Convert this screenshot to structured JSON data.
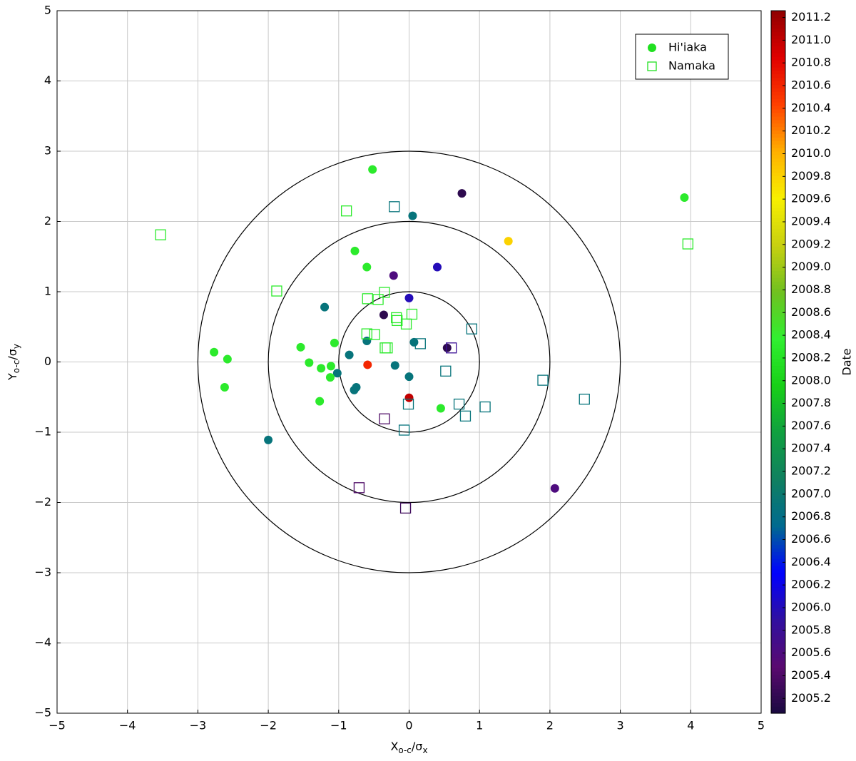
{
  "chart_data": {
    "type": "scatter",
    "xlabel": [
      "X",
      "o-c",
      "/σ",
      "x"
    ],
    "ylabel": [
      "Y",
      "o-c",
      "/σ",
      "y"
    ],
    "xlim": [
      -5,
      5
    ],
    "ylim": [
      -5,
      5
    ],
    "xticks": [
      {
        "value": -5,
        "label": "−5"
      },
      {
        "value": -4,
        "label": "−4"
      },
      {
        "value": -3,
        "label": "−3"
      },
      {
        "value": -2,
        "label": "−2"
      },
      {
        "value": -1,
        "label": "−1"
      },
      0,
      1,
      2,
      3,
      4,
      5
    ],
    "yticks": [
      {
        "value": -5,
        "label": "−5"
      },
      {
        "value": -4,
        "label": "−4"
      },
      {
        "value": -3,
        "label": "−3"
      },
      {
        "value": -2,
        "label": "−2"
      },
      {
        "value": -1,
        "label": "−1"
      },
      0,
      1,
      2,
      3,
      4,
      5
    ],
    "grid": true,
    "circles": [
      1,
      2,
      3
    ],
    "legend": "upper right",
    "colorbar": {
      "label": "Date",
      "lim": [
        2005.07,
        2011.26
      ],
      "ticks": [
        2005.2,
        2005.4,
        2005.6,
        2005.8,
        {
          "value": 2006,
          "label": "2006.0"
        },
        2006.2,
        2006.4,
        2006.6,
        2006.8,
        {
          "value": 2007,
          "label": "2007.0"
        },
        2007.2,
        2007.4,
        2007.6,
        2007.8,
        {
          "value": 2008,
          "label": "2008.0"
        },
        2008.2,
        2008.4,
        2008.6,
        2008.8,
        {
          "value": 2009,
          "label": "2009.0"
        },
        2009.2,
        2009.4,
        2009.6,
        2009.8,
        {
          "value": 2010,
          "label": "2010.0"
        },
        2010.2,
        2010.4,
        2010.6,
        2010.8,
        {
          "value": 2011,
          "label": "2011.0"
        },
        2011.2
      ],
      "colors": [
        "#1a0a40",
        "#5a0a70",
        "#3010a0",
        "#0000ff",
        "#006a90",
        "#108060",
        "#10a040",
        "#18d018",
        "#30f030",
        "#70c020",
        "#c8d010",
        "#f8f000",
        "#ffb000",
        "#ff4000",
        "#e00000",
        "#900000"
      ]
    },
    "series": [
      {
        "name": "Hi'iaka",
        "marker": "circle",
        "color": "#20e020",
        "x": [
          -0.52,
          0.75,
          0.05,
          3.91,
          1.41,
          -0.77,
          -0.6,
          0.4,
          -0.22,
          0.0,
          -1.2,
          -0.36,
          -2.77,
          -2.58,
          -1.54,
          -1.06,
          -0.6,
          0.07,
          0.54,
          -0.85,
          -1.42,
          -1.25,
          -1.11,
          -1.02,
          -1.12,
          -0.59,
          -0.2,
          0.0,
          -0.75,
          -0.78,
          -2.62,
          -1.27,
          0.0,
          0.45,
          -2.0,
          2.07
        ],
        "y": [
          2.74,
          2.4,
          2.08,
          2.34,
          1.72,
          1.58,
          1.35,
          1.35,
          1.23,
          0.91,
          0.78,
          0.67,
          0.14,
          0.04,
          0.21,
          0.27,
          0.3,
          0.28,
          0.2,
          0.1,
          -0.01,
          -0.09,
          -0.06,
          -0.16,
          -0.22,
          -0.04,
          -0.05,
          -0.21,
          -0.36,
          -0.4,
          -0.36,
          -0.56,
          -0.51,
          -0.66,
          -1.11,
          -1.8
        ],
        "dates": [
          2008.3,
          2005.2,
          2006.9,
          2008.3,
          2009.8,
          2008.3,
          2008.3,
          2006.0,
          2005.6,
          2006.0,
          2006.9,
          2005.2,
          2008.3,
          2008.3,
          2008.3,
          2008.3,
          2006.9,
          2006.9,
          2005.2,
          2006.9,
          2008.3,
          2008.3,
          2008.3,
          2006.9,
          2008.3,
          2010.6,
          2006.9,
          2006.9,
          2006.9,
          2006.9,
          2008.3,
          2008.3,
          2011.0,
          2008.3,
          2006.9,
          2005.6
        ]
      },
      {
        "name": "Namaka",
        "marker": "square",
        "color": "#20e020",
        "x": [
          -3.53,
          -0.89,
          -0.21,
          3.96,
          -1.88,
          -0.35,
          -0.59,
          -0.44,
          0.04,
          -0.18,
          -0.17,
          -0.04,
          0.89,
          0.16,
          -0.6,
          -0.49,
          -0.34,
          -0.31,
          0.6,
          0.52,
          1.9,
          2.49,
          1.08,
          0.71,
          0.8,
          -0.01,
          -0.35,
          -0.07,
          -0.71,
          -0.05
        ],
        "y": [
          1.81,
          2.15,
          2.21,
          1.68,
          1.01,
          0.99,
          0.9,
          0.89,
          0.68,
          0.63,
          0.59,
          0.54,
          0.47,
          0.26,
          0.4,
          0.39,
          0.2,
          0.2,
          0.2,
          -0.13,
          -0.26,
          -0.53,
          -0.64,
          -0.6,
          -0.77,
          -0.6,
          -0.81,
          -0.97,
          -1.79,
          -2.08
        ],
        "dates": [
          2008.3,
          2008.3,
          2006.9,
          2008.3,
          2008.3,
          2008.3,
          2008.3,
          2008.3,
          2008.3,
          2008.3,
          2008.3,
          2008.3,
          2006.9,
          2006.9,
          2008.3,
          2008.3,
          2008.3,
          2008.3,
          2005.8,
          2006.9,
          2006.9,
          2006.9,
          2006.9,
          2006.9,
          2006.9,
          2006.9,
          2005.4,
          2006.9,
          2005.4,
          2005.3
        ]
      }
    ]
  }
}
